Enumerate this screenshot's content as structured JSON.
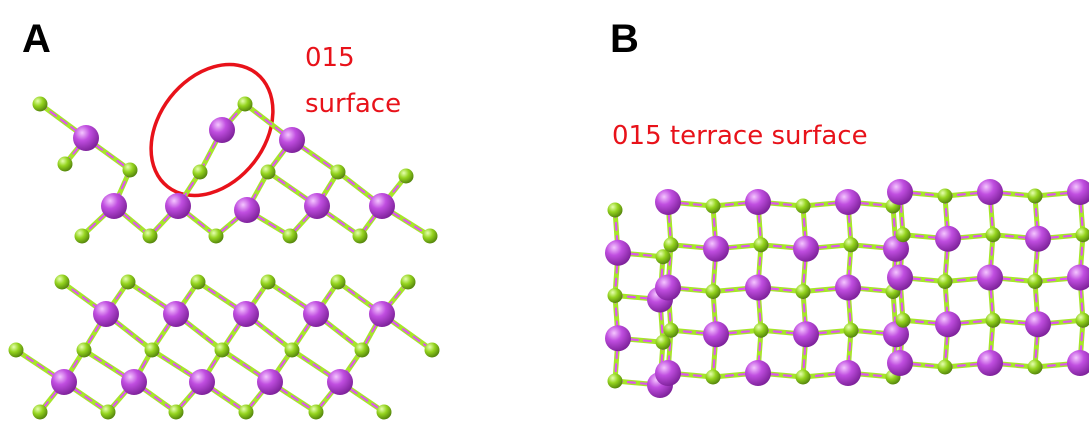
{
  "panel_a": {
    "letter": "A",
    "annotation_line1": "015",
    "annotation_line2": "surface"
  },
  "panel_b": {
    "letter": "B",
    "annotation": "015 terrace  surface"
  },
  "colors": {
    "large_atom": "#b23fd8",
    "small_atom": "#8fd11e",
    "highlight": "#e8121a",
    "bond_pink": "#dd55ee",
    "bond_green": "#a6e52a"
  }
}
